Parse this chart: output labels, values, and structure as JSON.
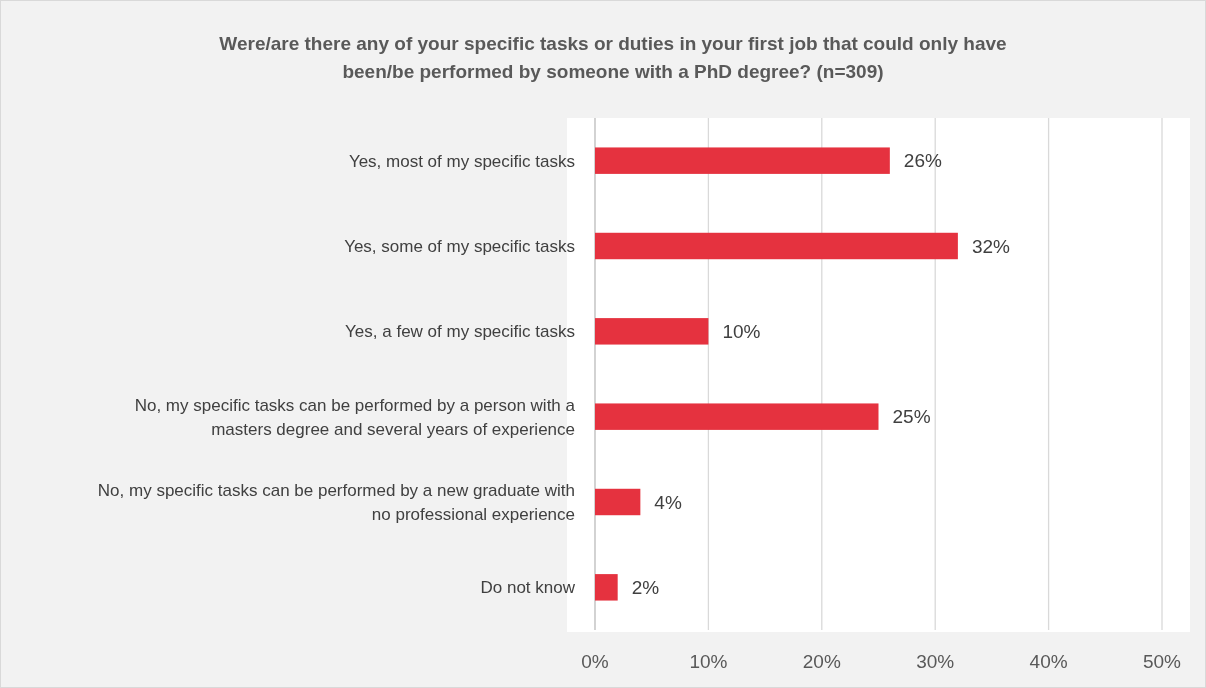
{
  "chart_data": {
    "type": "bar",
    "orientation": "horizontal",
    "title": "Were/are there any of your specific tasks or duties in your first job that could only have been/be performed by someone with a PhD degree? (n=309)",
    "categories": [
      "Yes, most of my specific tasks",
      "Yes, some of my specific tasks",
      "Yes, a few of my specific tasks",
      "No, my specific tasks can be performed by a person with a masters degree and several years of experience",
      "No, my specific tasks can be performed by a new graduate with no professional experience",
      "Do not know"
    ],
    "values": [
      26,
      32,
      10,
      25,
      4,
      2
    ],
    "value_labels": [
      "26%",
      "32%",
      "10%",
      "25%",
      "4%",
      "2%"
    ],
    "color": "#e5323f",
    "xlim": [
      0,
      50
    ],
    "xticks": [
      {
        "value": 0,
        "label": "0%"
      },
      {
        "value": 10,
        "label": "10%"
      },
      {
        "value": 20,
        "label": "20%"
      },
      {
        "value": 30,
        "label": "30%"
      },
      {
        "value": 40,
        "label": "40%"
      },
      {
        "value": 50,
        "label": "50%"
      }
    ],
    "grid": "x"
  }
}
